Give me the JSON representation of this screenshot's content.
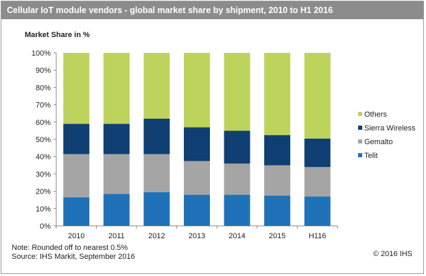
{
  "title": "Cellular IoT module vendors - global market share by shipment, 2010 to H1 2016",
  "footer": {
    "note": "Note: Rounded off to nearest 0.5%",
    "source": "Source: IHS Markit, September 2016",
    "copyright": "© 2016 IHS"
  },
  "chart_data": {
    "type": "bar",
    "stacked": true,
    "ylabel": "Market Share in %",
    "xlabel": "",
    "ylim": [
      0,
      100
    ],
    "yticks": [
      "0%",
      "10%",
      "20%",
      "30%",
      "40%",
      "50%",
      "60%",
      "70%",
      "80%",
      "90%",
      "100%"
    ],
    "categories": [
      "2010",
      "2011",
      "2012",
      "2013",
      "2014",
      "2015",
      "H116"
    ],
    "series": [
      {
        "name": "Telit",
        "color": "#1f72b8",
        "values": [
          16.5,
          18.5,
          19.5,
          18,
          18,
          17.5,
          17
        ]
      },
      {
        "name": "Gemalto",
        "color": "#a5a5a5",
        "values": [
          25,
          23,
          22,
          19.5,
          18,
          17.5,
          17
        ]
      },
      {
        "name": "Sierra Wireless",
        "color": "#0f3f73",
        "values": [
          17.5,
          17.5,
          20.5,
          19.5,
          19,
          17.5,
          16.5
        ]
      },
      {
        "name": "Others",
        "color": "#bdd35b",
        "values": [
          41,
          41,
          38,
          43,
          45,
          47.5,
          49.5
        ]
      }
    ],
    "legend_order": [
      "Others",
      "Sierra Wireless",
      "Gemalto",
      "Telit"
    ],
    "legend_position": "right",
    "grid": false
  }
}
